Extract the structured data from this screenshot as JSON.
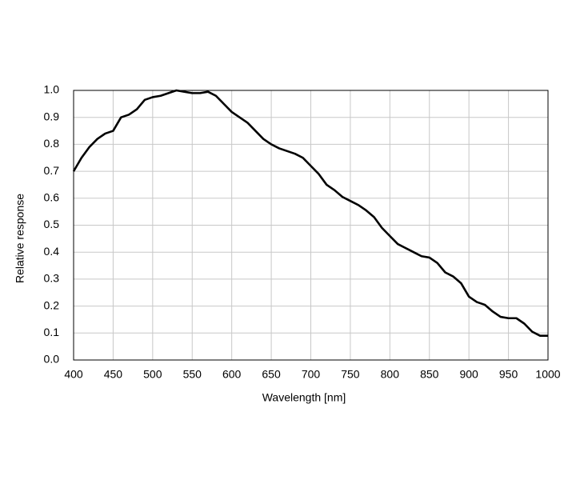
{
  "chart_data": {
    "type": "line",
    "x_label": "Wavelength [nm]",
    "y_label": "Relative response",
    "x": [
      400,
      410,
      420,
      430,
      440,
      450,
      460,
      470,
      480,
      490,
      500,
      510,
      520,
      530,
      540,
      550,
      560,
      570,
      580,
      590,
      600,
      610,
      620,
      630,
      640,
      650,
      660,
      670,
      680,
      690,
      700,
      710,
      720,
      730,
      740,
      750,
      760,
      770,
      780,
      790,
      800,
      810,
      820,
      830,
      840,
      850,
      860,
      870,
      880,
      890,
      900,
      910,
      920,
      930,
      940,
      950,
      960,
      970,
      980,
      990,
      1000
    ],
    "series": [
      {
        "color": "#000000",
        "values": [
          0.7,
          0.75,
          0.79,
          0.82,
          0.84,
          0.85,
          0.9,
          0.91,
          0.93,
          0.965,
          0.975,
          0.98,
          0.99,
          1.0,
          0.995,
          0.99,
          0.99,
          0.995,
          0.98,
          0.95,
          0.92,
          0.9,
          0.88,
          0.85,
          0.82,
          0.8,
          0.785,
          0.775,
          0.765,
          0.75,
          0.72,
          0.69,
          0.65,
          0.63,
          0.605,
          0.59,
          0.575,
          0.555,
          0.53,
          0.49,
          0.46,
          0.43,
          0.415,
          0.4,
          0.385,
          0.38,
          0.36,
          0.325,
          0.31,
          0.285,
          0.235,
          0.215,
          0.205,
          0.18,
          0.16,
          0.155,
          0.155,
          0.135,
          0.105,
          0.09,
          0.09
        ]
      }
    ],
    "xlim": [
      400,
      1000
    ],
    "xticks": [
      400,
      450,
      500,
      550,
      600,
      650,
      700,
      750,
      800,
      850,
      900,
      950,
      1000
    ],
    "ylim": [
      0,
      1
    ],
    "yticks": [
      {
        "value": 0,
        "label": "0.0"
      },
      0.1,
      0.2,
      0.3,
      0.4,
      0.5,
      0.6,
      0.7,
      0.8,
      0.9,
      {
        "value": 1,
        "label": "1.0"
      }
    ],
    "grid": true
  }
}
